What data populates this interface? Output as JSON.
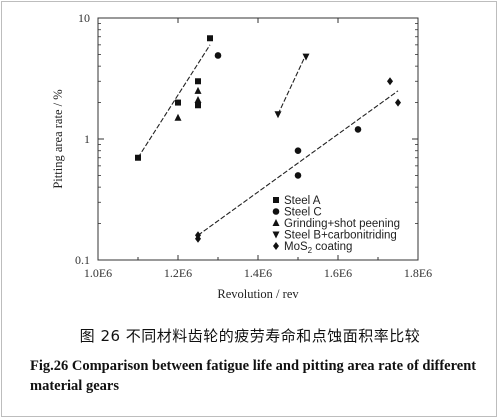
{
  "chart_data": {
    "type": "scatter",
    "title": "",
    "xlabel": "Revolution / rev",
    "ylabel": "Pitting area rate / %",
    "xlim": [
      1000000,
      1800000
    ],
    "ylim": [
      0.1,
      10
    ],
    "yscale": "log",
    "x_ticks": [
      1000000,
      1200000,
      1400000,
      1600000,
      1800000
    ],
    "x_tick_labels": [
      "1.0E6",
      "1.2E6",
      "1.4E6",
      "1.6E6",
      "1.8E6"
    ],
    "y_ticks": [
      0.1,
      1,
      10
    ],
    "y_tick_labels": [
      "0.1",
      "1",
      "10"
    ],
    "legend_position": "bottom-right",
    "series": [
      {
        "name": "Steel A",
        "marker": "square",
        "points": [
          [
            1100000,
            0.7
          ],
          [
            1200000,
            2.0
          ],
          [
            1250000,
            3.0
          ],
          [
            1250000,
            1.9
          ],
          [
            1280000,
            6.8
          ]
        ]
      },
      {
        "name": "Steel C",
        "marker": "circle",
        "points": [
          [
            1300000,
            4.9
          ],
          [
            1500000,
            0.8
          ],
          [
            1500000,
            0.5
          ],
          [
            1650000,
            1.2
          ]
        ]
      },
      {
        "name": "Grinding+shot peening",
        "marker": "triangle-up",
        "points": [
          [
            1200000,
            1.5
          ],
          [
            1250000,
            2.5
          ],
          [
            1250000,
            2.1
          ]
        ]
      },
      {
        "name": "Steel B+carbonitriding",
        "marker": "triangle-down",
        "points": [
          [
            1450000,
            1.6
          ],
          [
            1520000,
            4.8
          ]
        ]
      },
      {
        "name": "MoS2 coating",
        "marker": "diamond",
        "points": [
          [
            1250000,
            0.15
          ],
          [
            1250000,
            0.16
          ],
          [
            1730000,
            3.0
          ],
          [
            1750000,
            2.0
          ]
        ]
      }
    ],
    "fit_lines": [
      {
        "from": [
          1100000,
          0.7
        ],
        "to": [
          1280000,
          6.0
        ]
      },
      {
        "from": [
          1450000,
          1.6
        ],
        "to": [
          1520000,
          5.0
        ]
      },
      {
        "from": [
          1250000,
          0.16
        ],
        "to": [
          1750000,
          2.5
        ]
      }
    ]
  },
  "caption_cn": "图 26  不同材料齿轮的疲劳寿命和点蚀面积率比较",
  "caption_en": "Fig.26   Comparison between fatigue life and pitting area rate of different material gears"
}
